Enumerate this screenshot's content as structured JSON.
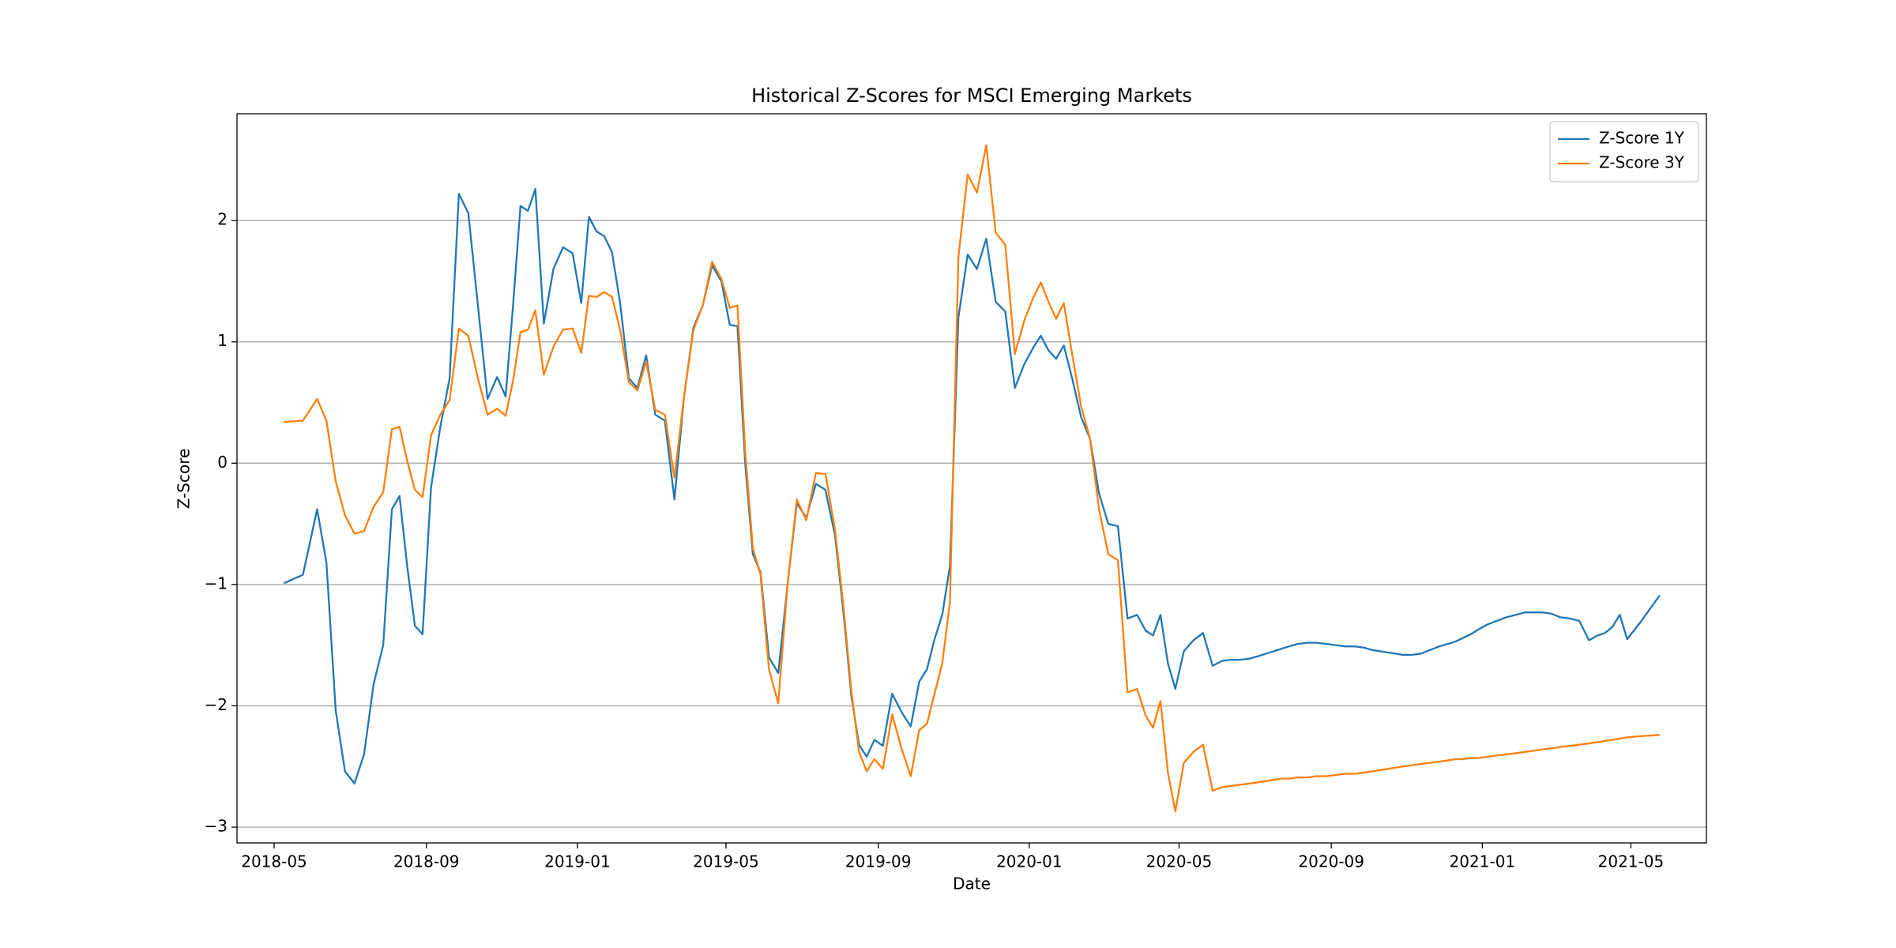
{
  "chart_data": {
    "type": "line",
    "title": "Historical Z-Scores for MSCI Emerging Markets",
    "xlabel": "Date",
    "ylabel": "Z-Score",
    "x": [
      "2018-05",
      "2018-05",
      "2018-06",
      "2018-06",
      "2018-06",
      "2018-06",
      "2018-07",
      "2018-07",
      "2018-07",
      "2018-07",
      "2018-08",
      "2018-08",
      "2018-08",
      "2018-08",
      "2018-08",
      "2018-09",
      "2018-09",
      "2018-09",
      "2018-09",
      "2018-10",
      "2018-10",
      "2018-10",
      "2018-10",
      "2018-11",
      "2018-11",
      "2018-11",
      "2018-11",
      "2018-11",
      "2018-12",
      "2018-12",
      "2018-12",
      "2018-12",
      "2019-01",
      "2019-01",
      "2019-01",
      "2019-01",
      "2019-01",
      "2019-02",
      "2019-02",
      "2019-02",
      "2019-02",
      "2019-03",
      "2019-03",
      "2019-03",
      "2019-03",
      "2019-04",
      "2019-04",
      "2019-04",
      "2019-04",
      "2019-05",
      "2019-05",
      "2019-05",
      "2019-05",
      "2019-05",
      "2019-06",
      "2019-06",
      "2019-06",
      "2019-06",
      "2019-07",
      "2019-07",
      "2019-07",
      "2019-07",
      "2019-08",
      "2019-08",
      "2019-08",
      "2019-08",
      "2019-08",
      "2019-09",
      "2019-09",
      "2019-09",
      "2019-09",
      "2019-10",
      "2019-10",
      "2019-10",
      "2019-10",
      "2019-10",
      "2019-11",
      "2019-11",
      "2019-11",
      "2019-11",
      "2019-12",
      "2019-12",
      "2019-12",
      "2019-12",
      "2020-01",
      "2020-01",
      "2020-01",
      "2020-01",
      "2020-01",
      "2020-02",
      "2020-02",
      "2020-02",
      "2020-02",
      "2020-03",
      "2020-03",
      "2020-03",
      "2020-03",
      "2020-04",
      "2020-04",
      "2020-04",
      "2020-04",
      "2020-04",
      "2020-05",
      "2020-05",
      "2020-05",
      "2020-05",
      "2020-06",
      "2020-06",
      "2020-06",
      "2020-06",
      "2020-07",
      "2020-07",
      "2020-07",
      "2020-07",
      "2020-07",
      "2020-08",
      "2020-08",
      "2020-08",
      "2020-08",
      "2020-09",
      "2020-09",
      "2020-09",
      "2020-09",
      "2020-10",
      "2020-10",
      "2020-10",
      "2020-10",
      "2020-10",
      "2020-11",
      "2020-11",
      "2020-11",
      "2020-11",
      "2020-12",
      "2020-12",
      "2020-12",
      "2020-12",
      "2020-12",
      "2021-01",
      "2021-01",
      "2021-01",
      "2021-01",
      "2021-02",
      "2021-02",
      "2021-02",
      "2021-02",
      "2021-03",
      "2021-03",
      "2021-03",
      "2021-03",
      "2021-04",
      "2021-04",
      "2021-04",
      "2021-04",
      "2021-04",
      "2021-05",
      "2021-05"
    ],
    "series": [
      {
        "name": "Z-Score 1Y",
        "color": "#1f77b4",
        "values": [
          -0.99,
          -0.92,
          -0.38,
          -0.82,
          -2.04,
          -2.54,
          -2.64,
          -2.4,
          -1.82,
          -1.5,
          -0.38,
          -0.27,
          -0.85,
          -1.34,
          -1.41,
          -0.2,
          0.3,
          0.7,
          2.22,
          2.06,
          1.3,
          0.53,
          0.71,
          0.55,
          1.3,
          2.12,
          2.08,
          2.26,
          1.15,
          1.6,
          1.78,
          1.73,
          1.32,
          2.03,
          1.91,
          1.87,
          1.74,
          1.32,
          0.7,
          0.62,
          0.89,
          0.4,
          0.35,
          -0.3,
          0.55,
          1.12,
          1.3,
          1.63,
          1.5,
          1.14,
          1.13,
          0,
          -0.75,
          -0.9,
          -1.6,
          -1.73,
          -1.0,
          -0.33,
          -0.45,
          -0.17,
          -0.22,
          -0.6,
          -1.25,
          -1.92,
          -2.32,
          -2.42,
          -2.28,
          -2.33,
          -1.9,
          -2.05,
          -2.17,
          -1.8,
          -1.7,
          -1.45,
          -1.25,
          -0.85,
          1.2,
          1.72,
          1.6,
          1.85,
          1.33,
          1.25,
          0.62,
          0.82,
          0.95,
          1.05,
          0.93,
          0.86,
          0.97,
          0.7,
          0.38,
          0.2,
          -0.25,
          -0.5,
          -0.52,
          -1.28,
          -1.25,
          -1.38,
          -1.42,
          -1.25,
          -1.65,
          -1.86,
          -1.55,
          -1.46,
          -1.4,
          -1.67,
          -1.63,
          -1.62,
          -1.62,
          -1.61,
          -1.59,
          -1.57,
          -1.55,
          -1.53,
          -1.51,
          -1.49,
          -1.48,
          -1.48,
          -1.49,
          -1.5,
          -1.51,
          -1.51,
          -1.52,
          -1.54,
          -1.55,
          -1.56,
          -1.57,
          -1.58,
          -1.58,
          -1.57,
          -1.54,
          -1.51,
          -1.49,
          -1.47,
          -1.44,
          -1.41,
          -1.37,
          -1.33,
          -1.3,
          -1.27,
          -1.25,
          -1.23,
          -1.23,
          -1.23,
          -1.24,
          -1.27,
          -1.28,
          -1.3,
          -1.46,
          -1.42,
          -1.4,
          -1.35,
          -1.25,
          -1.45,
          -1.31,
          -1.09
        ]
      },
      {
        "name": "Z-Score 3Y",
        "color": "#ff7f0e",
        "values": [
          0.34,
          0.35,
          0.53,
          0.35,
          -0.15,
          -0.43,
          -0.58,
          -0.56,
          -0.36,
          -0.24,
          0.28,
          0.3,
          0.02,
          -0.22,
          -0.28,
          0.23,
          0.4,
          0.52,
          1.11,
          1.05,
          0.7,
          0.4,
          0.45,
          0.39,
          0.68,
          1.08,
          1.1,
          1.26,
          0.73,
          0.96,
          1.1,
          1.11,
          0.91,
          1.38,
          1.37,
          1.41,
          1.37,
          1.1,
          0.67,
          0.6,
          0.84,
          0.44,
          0.4,
          -0.12,
          0.55,
          1.1,
          1.3,
          1.66,
          1.52,
          1.28,
          1.3,
          0.1,
          -0.7,
          -0.92,
          -1.7,
          -1.98,
          -1.0,
          -0.3,
          -0.47,
          -0.08,
          -0.09,
          -0.55,
          -1.2,
          -1.88,
          -2.38,
          -2.54,
          -2.44,
          -2.52,
          -2.07,
          -2.35,
          -2.58,
          -2.2,
          -2.15,
          -1.9,
          -1.65,
          -1.15,
          1.7,
          2.38,
          2.23,
          2.62,
          1.9,
          1.8,
          0.9,
          1.18,
          1.36,
          1.49,
          1.33,
          1.19,
          1.32,
          0.9,
          0.47,
          0.2,
          -0.38,
          -0.75,
          -0.8,
          -1.89,
          -1.86,
          -2.08,
          -2.18,
          -1.96,
          -2.55,
          -2.87,
          -2.47,
          -2.38,
          -2.32,
          -2.7,
          -2.67,
          -2.66,
          -2.65,
          -2.64,
          -2.63,
          -2.62,
          -2.61,
          -2.6,
          -2.6,
          -2.59,
          -2.59,
          -2.58,
          -2.58,
          -2.57,
          -2.56,
          -2.56,
          -2.55,
          -2.54,
          -2.53,
          -2.52,
          -2.51,
          -2.5,
          -2.49,
          -2.48,
          -2.47,
          -2.46,
          -2.45,
          -2.44,
          -2.44,
          -2.43,
          -2.43,
          -2.42,
          -2.41,
          -2.4,
          -2.39,
          -2.38,
          -2.37,
          -2.36,
          -2.35,
          -2.34,
          -2.33,
          -2.32,
          -2.31,
          -2.3,
          -2.29,
          -2.28,
          -2.27,
          -2.26,
          -2.25,
          -2.24
        ]
      }
    ],
    "xlim": [
      "2018-04",
      "2021-07"
    ],
    "xticks": [
      "2018-05",
      "2018-09",
      "2019-01",
      "2019-05",
      "2019-09",
      "2020-01",
      "2020-05",
      "2020-09",
      "2021-01",
      "2021-05"
    ],
    "ylim": [
      -3.13,
      2.88
    ],
    "yticks": [
      {
        "value": -3,
        "label": "−3"
      },
      {
        "value": -2,
        "label": "−2"
      },
      {
        "value": -1,
        "label": "−1"
      },
      0,
      1,
      2
    ],
    "grid": "y",
    "legend": "upper right"
  }
}
